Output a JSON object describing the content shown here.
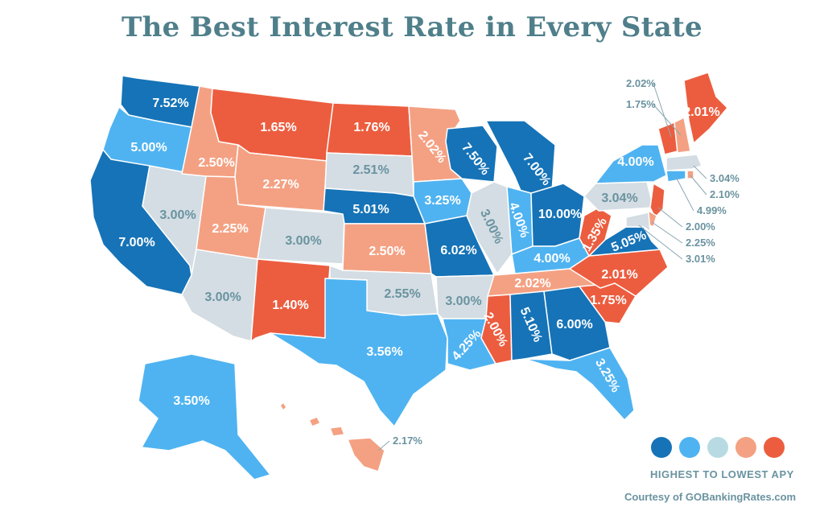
{
  "title": "The Best Interest Rate in Every State",
  "legend": {
    "title": "HIGHEST TO LOWEST APY",
    "colors": [
      "#1673b7",
      "#4fb3f1",
      "#b8dbe3",
      "#f4a183",
      "#ec5d3f"
    ]
  },
  "credit": "Courtesy of GOBankingRates.com",
  "palette": {
    "highest": "#1673b7",
    "high": "#4fb3f1",
    "mid": "#d3dde3",
    "low": "#f4a183",
    "lowest": "#ec5d3f"
  },
  "states": [
    {
      "id": "WA",
      "rate": "7.52%",
      "tier": "highest"
    },
    {
      "id": "OR",
      "rate": "5.00%",
      "tier": "high"
    },
    {
      "id": "CA",
      "rate": "7.00%",
      "tier": "highest"
    },
    {
      "id": "NV",
      "rate": "3.00%",
      "tier": "mid"
    },
    {
      "id": "ID",
      "rate": "2.50%",
      "tier": "low"
    },
    {
      "id": "MT",
      "rate": "1.65%",
      "tier": "lowest"
    },
    {
      "id": "WY",
      "rate": "2.27%",
      "tier": "low"
    },
    {
      "id": "UT",
      "rate": "2.25%",
      "tier": "low"
    },
    {
      "id": "AZ",
      "rate": "3.00%",
      "tier": "mid"
    },
    {
      "id": "CO",
      "rate": "3.00%",
      "tier": "mid"
    },
    {
      "id": "NM",
      "rate": "1.40%",
      "tier": "lowest"
    },
    {
      "id": "ND",
      "rate": "1.76%",
      "tier": "lowest"
    },
    {
      "id": "SD",
      "rate": "2.51%",
      "tier": "mid"
    },
    {
      "id": "NE",
      "rate": "5.01%",
      "tier": "highest"
    },
    {
      "id": "KS",
      "rate": "2.50%",
      "tier": "low"
    },
    {
      "id": "OK",
      "rate": "2.55%",
      "tier": "mid"
    },
    {
      "id": "TX",
      "rate": "3.56%",
      "tier": "high"
    },
    {
      "id": "MN",
      "rate": "2.02%",
      "tier": "low"
    },
    {
      "id": "IA",
      "rate": "3.25%",
      "tier": "high"
    },
    {
      "id": "MO",
      "rate": "6.02%",
      "tier": "highest"
    },
    {
      "id": "AR",
      "rate": "3.00%",
      "tier": "mid"
    },
    {
      "id": "LA",
      "rate": "4.25%",
      "tier": "high"
    },
    {
      "id": "WI",
      "rate": "7.50%",
      "tier": "highest"
    },
    {
      "id": "IL",
      "rate": "3.00%",
      "tier": "mid"
    },
    {
      "id": "MI",
      "rate": "7.00%",
      "tier": "highest"
    },
    {
      "id": "IN",
      "rate": "4.00%",
      "tier": "high"
    },
    {
      "id": "OH",
      "rate": "10.00%",
      "tier": "highest"
    },
    {
      "id": "KY",
      "rate": "4.00%",
      "tier": "high"
    },
    {
      "id": "TN",
      "rate": "2.02%",
      "tier": "low"
    },
    {
      "id": "MS",
      "rate": "2.00%",
      "tier": "lowest"
    },
    {
      "id": "AL",
      "rate": "5.10%",
      "tier": "highest"
    },
    {
      "id": "GA",
      "rate": "6.00%",
      "tier": "highest"
    },
    {
      "id": "FL",
      "rate": "3.25%",
      "tier": "high"
    },
    {
      "id": "SC",
      "rate": "1.75%",
      "tier": "lowest"
    },
    {
      "id": "NC",
      "rate": "2.01%",
      "tier": "lowest"
    },
    {
      "id": "VA",
      "rate": "5.05%",
      "tier": "highest"
    },
    {
      "id": "WV",
      "rate": "1.35%",
      "tier": "lowest"
    },
    {
      "id": "PA",
      "rate": "3.04%",
      "tier": "mid"
    },
    {
      "id": "NY",
      "rate": "4.00%",
      "tier": "high"
    },
    {
      "id": "VT",
      "rate": "2.02%",
      "tier": "lowest"
    },
    {
      "id": "NH",
      "rate": "1.75%",
      "tier": "low"
    },
    {
      "id": "ME",
      "rate": "2.01%",
      "tier": "lowest"
    },
    {
      "id": "MA",
      "rate": "3.04%",
      "tier": "mid"
    },
    {
      "id": "RI",
      "rate": "2.10%",
      "tier": "low"
    },
    {
      "id": "CT",
      "rate": "4.99%",
      "tier": "high"
    },
    {
      "id": "NJ",
      "rate": "2.00%",
      "tier": "lowest"
    },
    {
      "id": "DE",
      "rate": "2.25%",
      "tier": "low"
    },
    {
      "id": "MD",
      "rate": "3.01%",
      "tier": "mid"
    },
    {
      "id": "AK",
      "rate": "3.50%",
      "tier": "high"
    },
    {
      "id": "HI",
      "rate": "2.17%",
      "tier": "low"
    }
  ]
}
